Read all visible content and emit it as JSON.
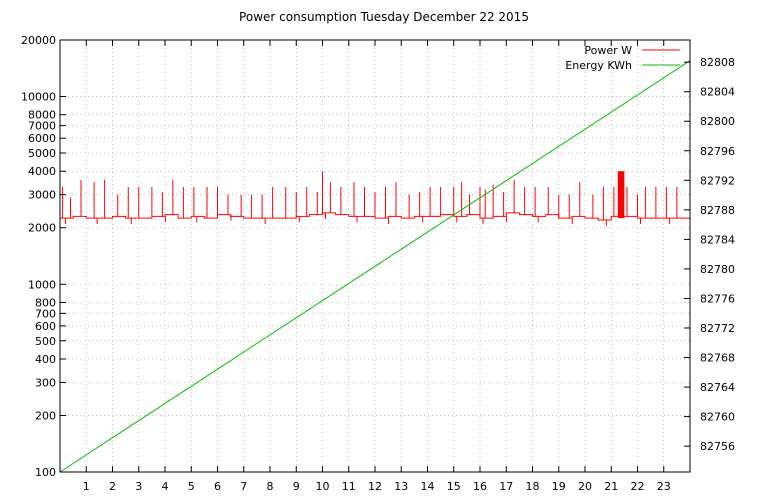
{
  "chart_data": {
    "type": "line",
    "title": "Power consumption Tuesday December 22 2015",
    "xlabel": "",
    "ylabel": "",
    "y2label": "",
    "xlim": [
      0,
      24
    ],
    "x_ticks": [
      "1",
      "2",
      "3",
      "4",
      "5",
      "6",
      "7",
      "8",
      "9",
      "10",
      "11",
      "12",
      "13",
      "14",
      "15",
      "16",
      "17",
      "18",
      "19",
      "20",
      "21",
      "22",
      "23"
    ],
    "y_scale": "log",
    "ylim": [
      100,
      20000
    ],
    "y_ticks": [
      100,
      200,
      300,
      400,
      500,
      600,
      700,
      800,
      1000,
      2000,
      3000,
      4000,
      5000,
      6000,
      7000,
      8000,
      10000,
      20000
    ],
    "y2lim": [
      82752.5,
      82811
    ],
    "y2_ticks": [
      82756,
      82760,
      82764,
      82768,
      82772,
      82776,
      82780,
      82784,
      82788,
      82792,
      82796,
      82800,
      82804,
      82808
    ],
    "grid": true,
    "legend_position": "top-right",
    "series": [
      {
        "name": "Power W",
        "axis": "left",
        "color": "#ff0000",
        "baseline_x": [
          0,
          0.5,
          1,
          1.5,
          2,
          2.5,
          3,
          3.5,
          4,
          4.5,
          5,
          5.5,
          6,
          6.5,
          7,
          7.5,
          8,
          8.5,
          9,
          9.5,
          10,
          10.5,
          11,
          11.5,
          12,
          12.5,
          13,
          13.5,
          14,
          14.5,
          15,
          15.5,
          16,
          16.5,
          17,
          17.5,
          18,
          18.5,
          19,
          19.5,
          20,
          20.5,
          21,
          21.5,
          22,
          22.5,
          23,
          23.5,
          24
        ],
        "baseline_y": [
          2250,
          2300,
          2250,
          2250,
          2300,
          2250,
          2250,
          2300,
          2350,
          2250,
          2300,
          2250,
          2350,
          2300,
          2250,
          2250,
          2250,
          2250,
          2300,
          2350,
          2400,
          2350,
          2300,
          2300,
          2250,
          2300,
          2250,
          2300,
          2300,
          2350,
          2300,
          2350,
          2250,
          2300,
          2400,
          2350,
          2300,
          2350,
          2250,
          2300,
          2250,
          2200,
          2300,
          2300,
          2250,
          2250,
          2250,
          2250,
          2300
        ],
        "spike_x": [
          0.1,
          0.4,
          0.8,
          1.3,
          1.7,
          2.2,
          2.6,
          3.0,
          3.5,
          3.9,
          4.3,
          4.7,
          5.1,
          5.6,
          6.0,
          6.4,
          6.9,
          7.3,
          7.7,
          8.1,
          8.6,
          9.0,
          9.4,
          9.8,
          10.0,
          10.3,
          10.7,
          11.2,
          11.6,
          12.0,
          12.4,
          12.8,
          13.3,
          13.7,
          14.1,
          14.5,
          15.0,
          15.3,
          15.6,
          16.0,
          16.2,
          16.5,
          16.9,
          17.3,
          17.7,
          18.1,
          18.6,
          19.0,
          19.4,
          19.8,
          20.3,
          20.7,
          21.1,
          21.6,
          22.0,
          22.3,
          22.7,
          23.1,
          23.5
        ],
        "spike_y": [
          3300,
          2900,
          3600,
          3500,
          3600,
          3000,
          3300,
          3300,
          3300,
          3100,
          3600,
          3300,
          3300,
          3300,
          3300,
          3000,
          3000,
          3000,
          3000,
          3300,
          3300,
          3100,
          3300,
          3100,
          4000,
          3500,
          3300,
          3500,
          3300,
          3100,
          3300,
          3500,
          3000,
          3100,
          3300,
          3300,
          3300,
          3500,
          3000,
          3300,
          3200,
          3400,
          3100,
          3600,
          3300,
          3300,
          3300,
          3000,
          3000,
          3500,
          3000,
          3300,
          3300,
          3300,
          3000,
          3300,
          3300,
          3300,
          3300
        ],
        "block_x": [
          21.25,
          21.5
        ],
        "block_y": 4000
      },
      {
        "name": "Energy KWh",
        "axis": "right",
        "color": "#00c000",
        "x": [
          0,
          24
        ],
        "y": [
          82752.5,
          82808.2
        ]
      }
    ]
  }
}
